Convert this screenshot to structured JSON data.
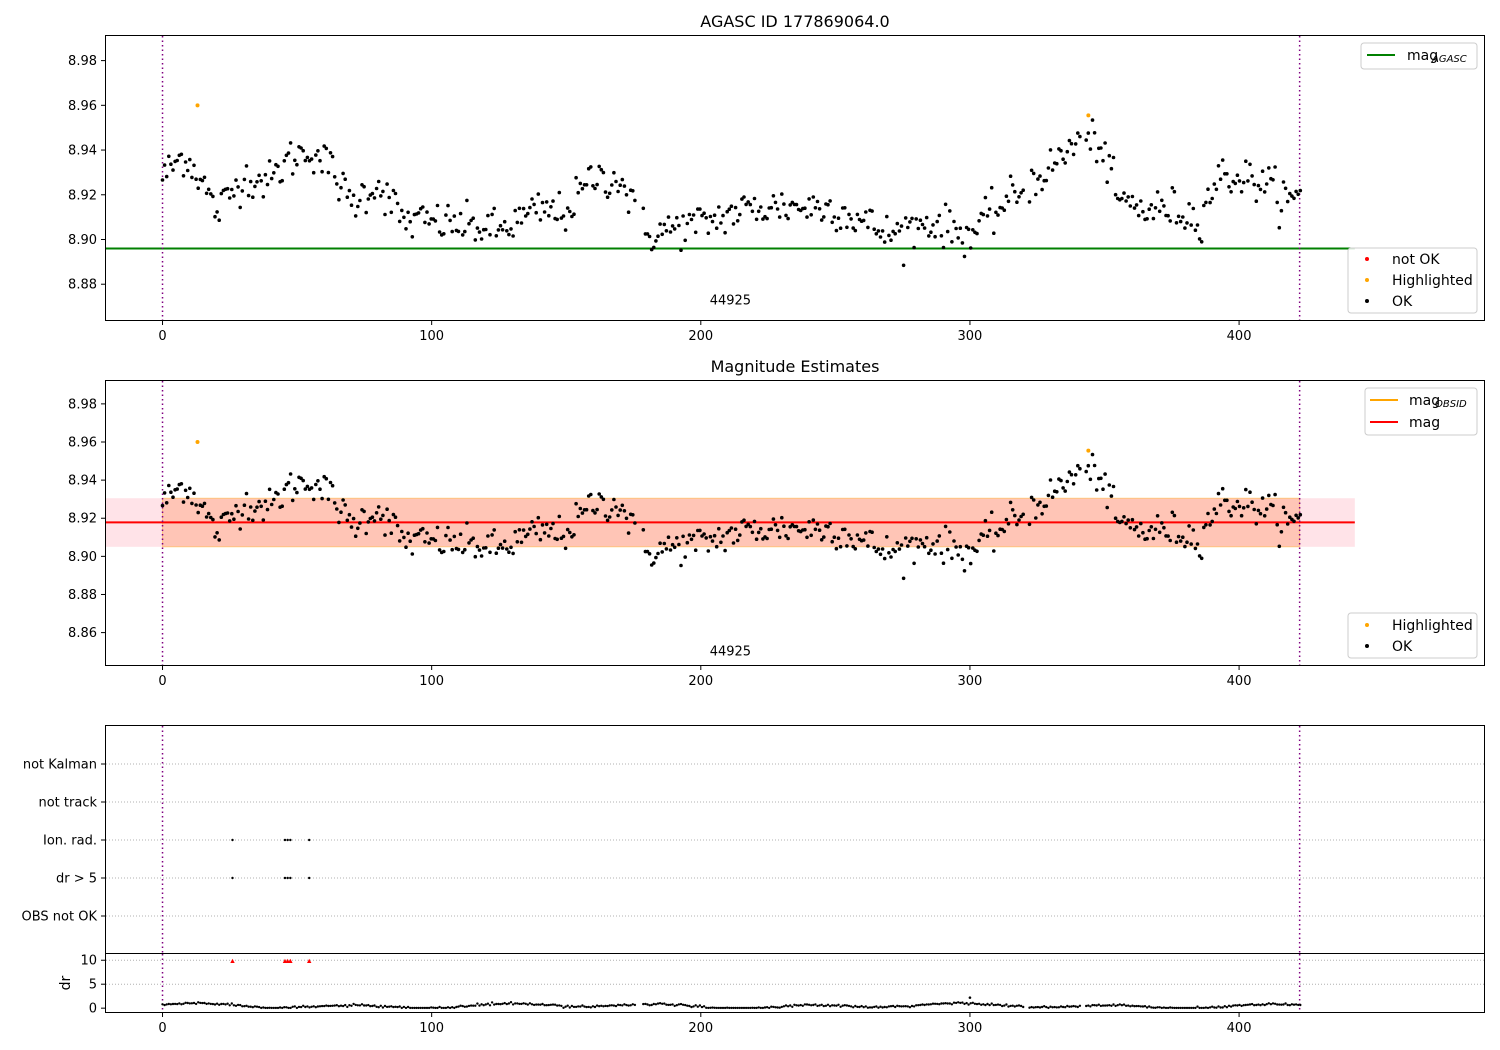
{
  "chart_data": [
    {
      "type": "scatter",
      "title": "AGASC ID 177869064.0",
      "xlim": [
        -21,
        491
      ],
      "ylim": [
        8.864,
        8.991
      ],
      "xticks": [
        0,
        100,
        200,
        300,
        400
      ],
      "yticks": [
        8.88,
        8.9,
        8.92,
        8.94,
        8.96,
        8.98
      ],
      "obsid_label": "44925",
      "obsid_x": 211,
      "obsid_y": 8.871,
      "vlines": [
        0,
        422.5
      ],
      "hline": {
        "name": "mag_AGASC",
        "label_main": "mag",
        "label_sub": "AGASC",
        "y": 8.896,
        "x_range": [
          -21,
          443
        ],
        "color": "#008000"
      },
      "legend_top": [
        {
          "label": "mag",
          "sub": "AGASC",
          "color": "#008000"
        }
      ],
      "legend_bottom": [
        {
          "label": "not OK",
          "color": "#ff0000"
        },
        {
          "label": "Highlighted",
          "color": "#ffa500"
        },
        {
          "label": "OK",
          "color": "#000000"
        }
      ],
      "highlighted": [
        [
          13,
          8.96
        ],
        [
          344,
          8.9555
        ]
      ]
    },
    {
      "type": "scatter",
      "title": "Magnitude Estimates",
      "xlim": [
        -21,
        491
      ],
      "ylim": [
        8.843,
        8.992
      ],
      "xticks": [
        0,
        100,
        200,
        300,
        400
      ],
      "yticks": [
        8.86,
        8.88,
        8.9,
        8.92,
        8.94,
        8.96,
        8.98
      ],
      "obsid_label": "44925",
      "obsid_x": 211,
      "obsid_y": 8.848,
      "vlines": [
        0,
        422.5
      ],
      "mag_line": {
        "y": 8.9178,
        "x_range": [
          -21,
          443
        ],
        "color": "#ff0000"
      },
      "mag_band": {
        "y0": 8.905,
        "y1": 8.9305,
        "x_range": [
          -21,
          443
        ],
        "color": "#ffc0cb"
      },
      "obsid_band": {
        "y0": 8.905,
        "y1": 8.9305,
        "x_range": [
          0,
          422.5
        ],
        "color": "#ffa07a"
      },
      "legend_top": [
        {
          "label": "mag",
          "sub": "OBSID",
          "color": "#ffa500"
        },
        {
          "label": "mag",
          "sub": "",
          "color": "#ff0000"
        }
      ],
      "legend_bottom": [
        {
          "label": "Highlighted",
          "color": "#ffa500"
        },
        {
          "label": "OK",
          "color": "#000000"
        }
      ],
      "highlighted": [
        [
          13,
          8.96
        ],
        [
          344,
          8.9555
        ]
      ]
    },
    {
      "type": "scatter",
      "title": "",
      "xlim": [
        -21,
        491
      ],
      "vlines": [
        0,
        422.5
      ],
      "flag_rows": [
        "not Kalman",
        "not track",
        "Ion. rad.",
        "dr > 5",
        "OBS not OK"
      ],
      "flag_points": {
        "Ion. rad.": [
          26,
          45.5,
          46.5,
          47.5,
          54.5
        ],
        "dr > 5": [
          26,
          45.5,
          46.5,
          47.5,
          54.5
        ]
      }
    },
    {
      "type": "scatter",
      "title": "",
      "ylabel": "dr",
      "xlim": [
        -21,
        491
      ],
      "ylim": [
        -0.8,
        11.3
      ],
      "xticks": [
        0,
        100,
        200,
        300,
        400
      ],
      "yticks": [
        0,
        5,
        10
      ],
      "vlines": [
        0,
        422.5
      ],
      "clipped_markers": [
        26,
        45.5,
        46.5,
        47.5,
        54.5
      ],
      "outlier": [
        300,
        2.2
      ]
    }
  ]
}
